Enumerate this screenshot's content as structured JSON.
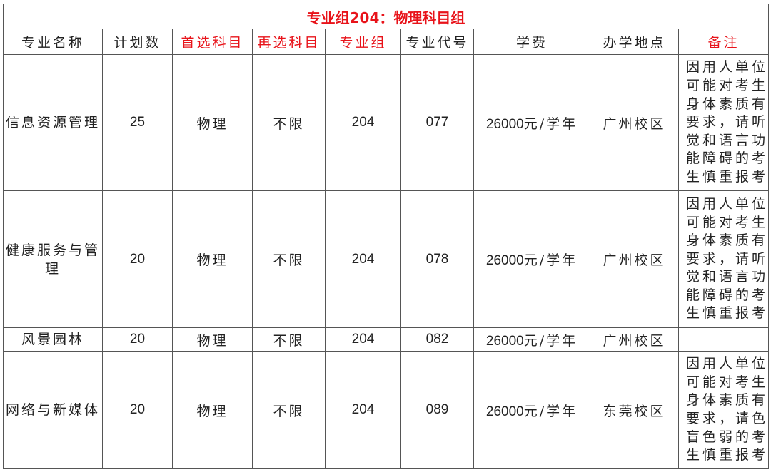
{
  "title": "专业组204：物理科目组",
  "colors": {
    "accent_red": "#e8131a",
    "border": "#555555"
  },
  "headers": [
    {
      "label": "专业名称",
      "highlight": false
    },
    {
      "label": "计划数",
      "highlight": false
    },
    {
      "label": "首选科目",
      "highlight": true
    },
    {
      "label": "再选科目",
      "highlight": true
    },
    {
      "label": "专业组",
      "highlight": true
    },
    {
      "label": "专业代号",
      "highlight": false
    },
    {
      "label": "学费",
      "highlight": false
    },
    {
      "label": "办学地点",
      "highlight": false
    },
    {
      "label": "备注",
      "highlight": true
    }
  ],
  "rows": [
    {
      "name": "信息资源管理",
      "plan": "25",
      "first": "物理",
      "second": "不限",
      "group": "204",
      "code": "077",
      "fee_amount": "26000",
      "fee_unit": "元/学年",
      "campus": "广州校区",
      "remark": "因用人单位可能对考生身体素质有要求，请听觉和语言功能障碍的考生慎重报考"
    },
    {
      "name": "健康服务与管理",
      "plan": "20",
      "first": "物理",
      "second": "不限",
      "group": "204",
      "code": "078",
      "fee_amount": "26000",
      "fee_unit": "元/学年",
      "campus": "广州校区",
      "remark": "因用人单位可能对考生身体素质有要求，请听觉和语言功能障碍的考生慎重报考"
    },
    {
      "name": "风景园林",
      "plan": "20",
      "first": "物理",
      "second": "不限",
      "group": "204",
      "code": "082",
      "fee_amount": "26000",
      "fee_unit": "元/学年",
      "campus": "广州校区",
      "remark": ""
    },
    {
      "name": "网络与新媒体",
      "plan": "20",
      "first": "物理",
      "second": "不限",
      "group": "204",
      "code": "089",
      "fee_amount": "26000",
      "fee_unit": "元/学年",
      "campus": "东莞校区",
      "remark": "因用人单位可能对考生身体素质有要求，请色盲色弱的考生慎重报考"
    }
  ]
}
